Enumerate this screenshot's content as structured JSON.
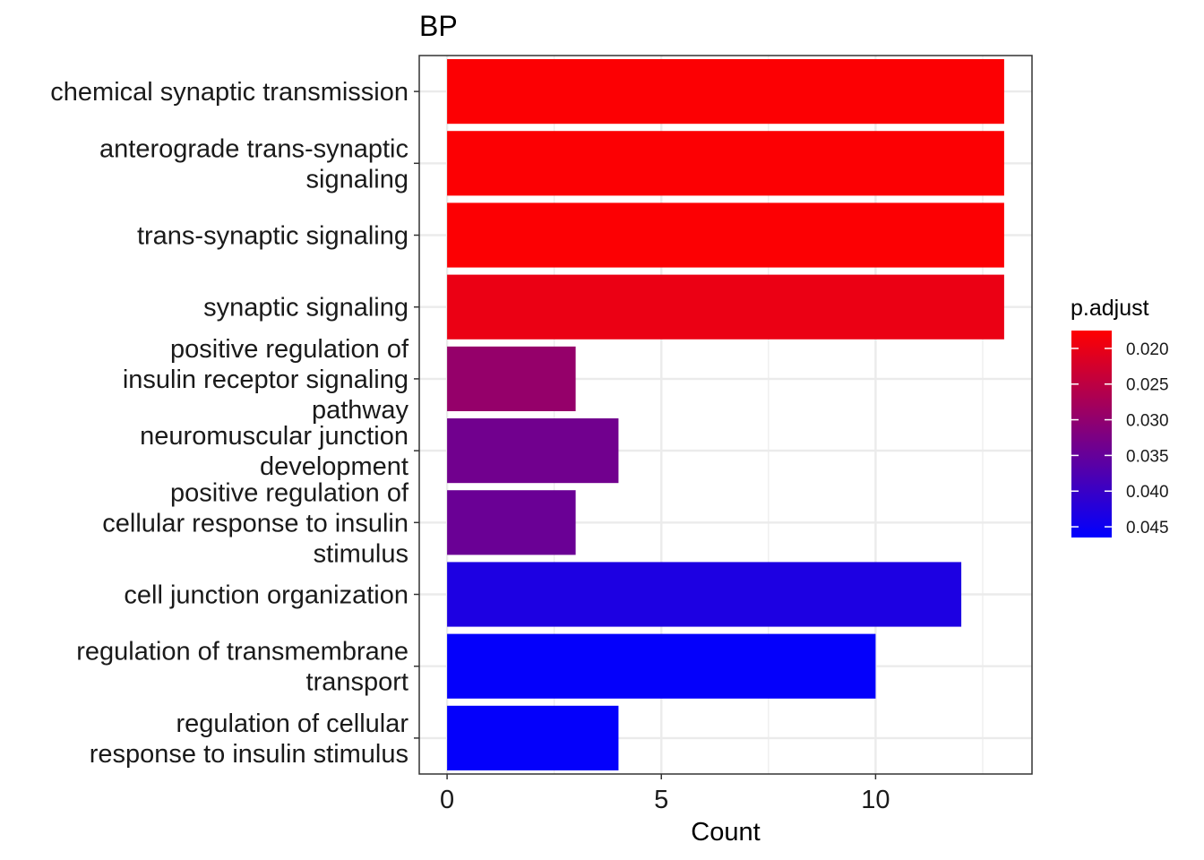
{
  "chart_data": {
    "type": "bar",
    "orientation": "horizontal",
    "title": "BP",
    "xlabel": "Count",
    "ylabel": "",
    "xlim": [
      -0.65,
      13.65
    ],
    "xticks": [
      0,
      5,
      10
    ],
    "grid": true,
    "categories": [
      "chemical synaptic transmission",
      "anterograde trans-synaptic signaling",
      "trans-synaptic signaling",
      "synaptic signaling",
      "positive regulation of insulin receptor signaling pathway",
      "neuromuscular junction development",
      "positive regulation of cellular response to insulin stimulus",
      "cell junction organization",
      "regulation of transmembrane transport",
      "regulation of cellular response to insulin stimulus"
    ],
    "category_lines": [
      [
        "chemical synaptic transmission"
      ],
      [
        "anterograde trans-synaptic",
        "signaling"
      ],
      [
        "trans-synaptic signaling"
      ],
      [
        "synaptic signaling"
      ],
      [
        "positive regulation of",
        "insulin receptor signaling",
        "pathway"
      ],
      [
        "neuromuscular junction",
        "development"
      ],
      [
        "positive regulation of",
        "cellular response to insulin",
        "stimulus"
      ],
      [
        "cell junction organization"
      ],
      [
        "regulation of transmembrane",
        "transport"
      ],
      [
        "regulation of cellular",
        "response to insulin stimulus"
      ]
    ],
    "values": [
      13,
      13,
      13,
      13,
      3,
      4,
      3,
      12,
      10,
      4
    ],
    "p_adjust": [
      0.0178,
      0.0178,
      0.0178,
      0.0198,
      0.0295,
      0.0337,
      0.0345,
      0.0432,
      0.0461,
      0.0461
    ],
    "legend": {
      "title": "p.adjust",
      "position": "right",
      "range": [
        0.0175,
        0.0465
      ],
      "ticks": [
        "0.020",
        "0.025",
        "0.030",
        "0.035",
        "0.040",
        "0.045"
      ],
      "tick_values": [
        0.02,
        0.025,
        0.03,
        0.035,
        0.04,
        0.045
      ],
      "color_low": "#FF0000",
      "color_high": "#0000FF"
    }
  }
}
